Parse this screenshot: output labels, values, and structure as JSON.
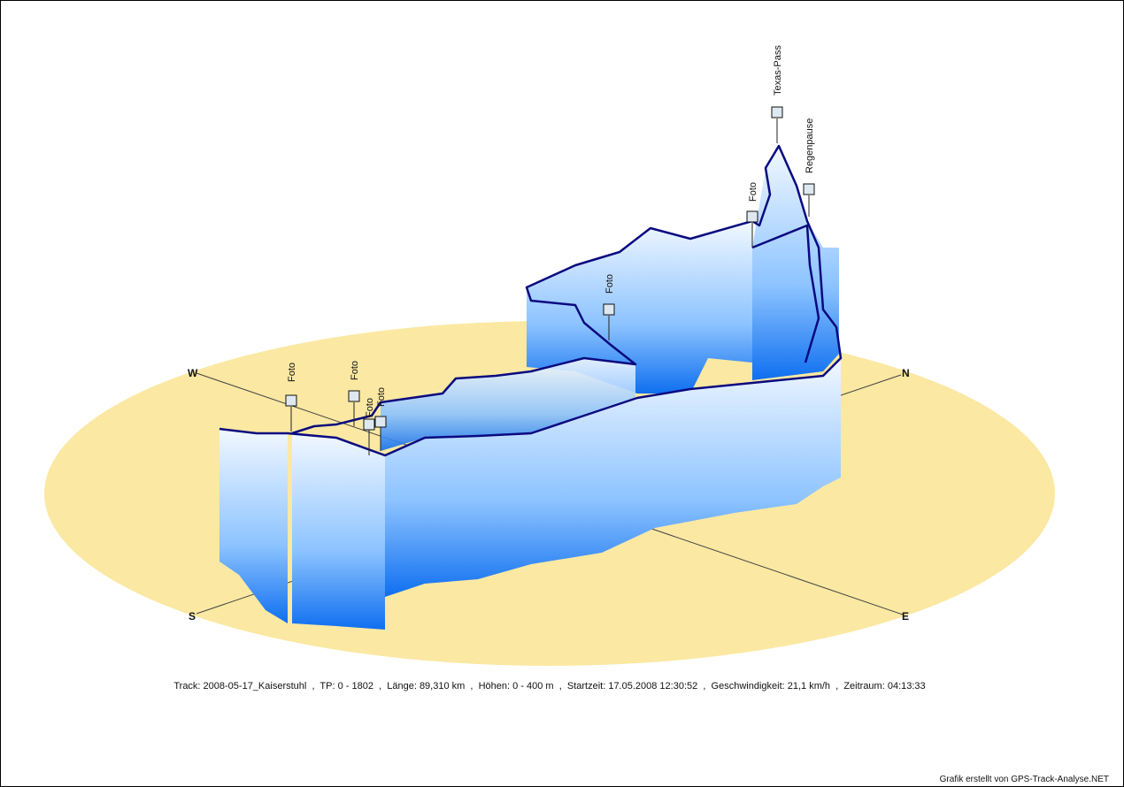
{
  "compass": {
    "west": "W",
    "north": "N",
    "south": "S",
    "east": "E"
  },
  "waypoints": [
    {
      "label": "Foto"
    },
    {
      "label": "Foto"
    },
    {
      "label": "Foto"
    },
    {
      "label": "Foto"
    },
    {
      "label": "Foto"
    },
    {
      "label": "Foto"
    },
    {
      "label": "Texas-Pass"
    },
    {
      "label": "Regenpause"
    }
  ],
  "footer": {
    "track_info": "Track: 2008-05-17_Kaiserstuhl  ,  TP: 0 - 1802  ,  Länge: 89,310 km  ,  Höhen: 0 - 400 m  ,  Startzeit: 17.05.2008 12:30:52  ,  Geschwindigkeit: 21,1 km/h  ,  Zeitraum: 04:13:33",
    "credit": "Grafik erstellt von GPS-Track-Analyse.NET"
  }
}
